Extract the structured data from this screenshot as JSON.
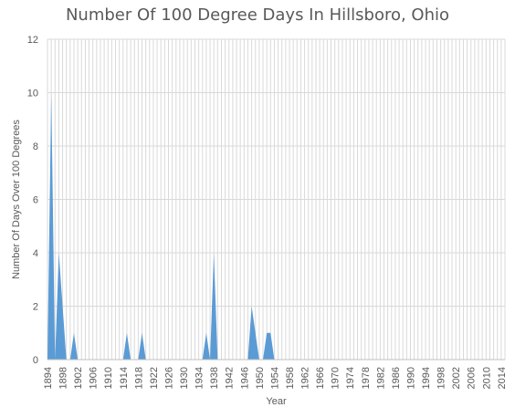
{
  "chart_data": {
    "type": "area",
    "title": "Number Of 100 Degree Days In Hillsboro, Ohio",
    "xlabel": "Year",
    "ylabel": "Number Of Days Over 100 Degrees",
    "ylim": [
      0,
      12
    ],
    "y_ticks": [
      0,
      2,
      4,
      6,
      8,
      10,
      12
    ],
    "x_range": [
      1894,
      2015
    ],
    "x_ticks": [
      1894,
      1898,
      1902,
      1906,
      1910,
      1914,
      1918,
      1922,
      1926,
      1930,
      1934,
      1938,
      1942,
      1946,
      1950,
      1954,
      1958,
      1962,
      1966,
      1970,
      1974,
      1978,
      1982,
      1986,
      1990,
      1994,
      1998,
      2002,
      2006,
      2010,
      2014
    ],
    "grid": true,
    "legend": "none",
    "series": [
      {
        "color": "#5b9bd5",
        "points": [
          {
            "x": 1894,
            "y": 0
          },
          {
            "x": 1895,
            "y": 10
          },
          {
            "x": 1896,
            "y": 0
          },
          {
            "x": 1897,
            "y": 4
          },
          {
            "x": 1899,
            "y": 0
          },
          {
            "x": 1900,
            "y": 0
          },
          {
            "x": 1901,
            "y": 1
          },
          {
            "x": 1902,
            "y": 0
          },
          {
            "x": 1914,
            "y": 0
          },
          {
            "x": 1915,
            "y": 1
          },
          {
            "x": 1916,
            "y": 0
          },
          {
            "x": 1918,
            "y": 0
          },
          {
            "x": 1919,
            "y": 1
          },
          {
            "x": 1920,
            "y": 0
          },
          {
            "x": 1935,
            "y": 0
          },
          {
            "x": 1936,
            "y": 1
          },
          {
            "x": 1937,
            "y": 0
          },
          {
            "x": 1938,
            "y": 4
          },
          {
            "x": 1939,
            "y": 0
          },
          {
            "x": 1947,
            "y": 0
          },
          {
            "x": 1948,
            "y": 2
          },
          {
            "x": 1950,
            "y": 0
          },
          {
            "x": 1951,
            "y": 0
          },
          {
            "x": 1952,
            "y": 1
          },
          {
            "x": 1953,
            "y": 1
          },
          {
            "x": 1954,
            "y": 0
          },
          {
            "x": 2015,
            "y": 0
          }
        ]
      }
    ]
  }
}
